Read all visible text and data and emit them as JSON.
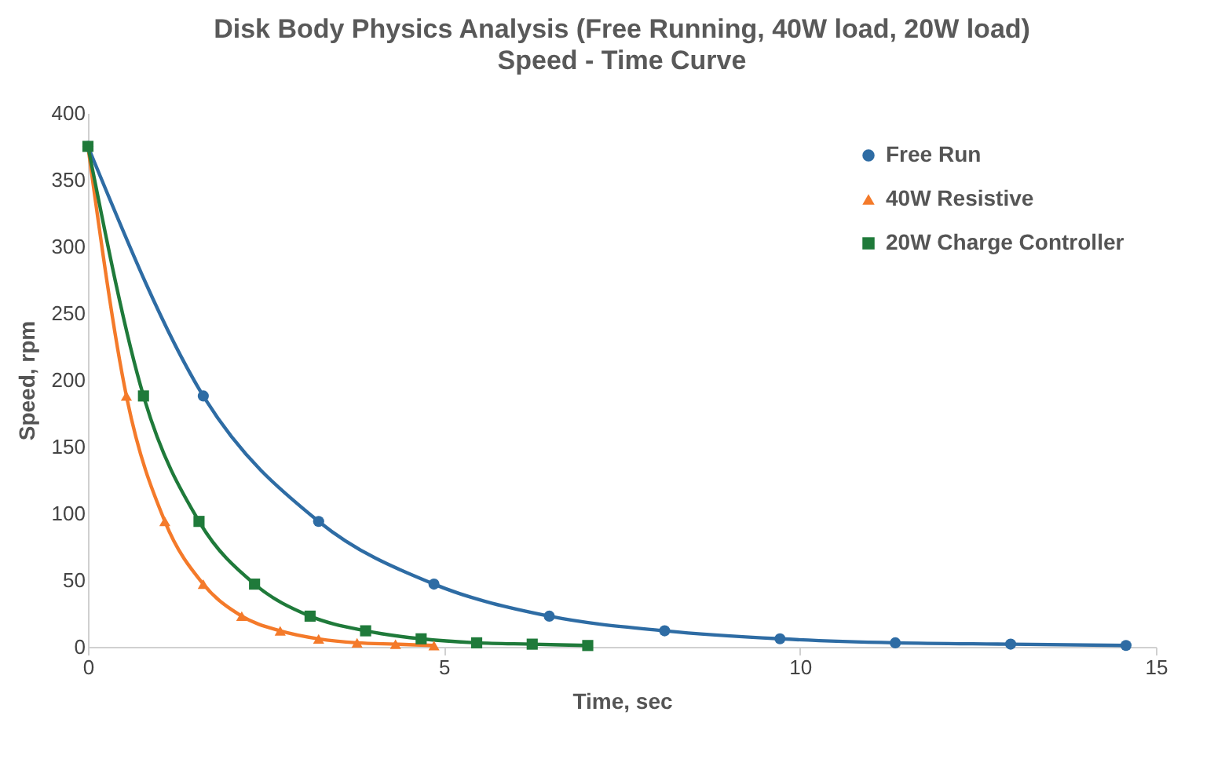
{
  "chart_data": {
    "type": "line",
    "title": "Disk Body Physics Analysis (Free Running, 40W load, 20W load)",
    "subtitle": "Speed - Time Curve",
    "xlabel": "Time, sec",
    "ylabel": "Speed, rpm",
    "xlim": [
      0,
      15
    ],
    "xticks": [
      0,
      5,
      10,
      15
    ],
    "ylim": [
      0,
      400
    ],
    "yticks": [
      0,
      50,
      100,
      150,
      200,
      250,
      300,
      350,
      400
    ],
    "grid": false,
    "legend": "top right",
    "series": [
      {
        "name": "Free Run",
        "color": "#2e6ca4",
        "marker": "circle",
        "x": [
          0,
          1.62,
          3.24,
          4.86,
          6.48,
          8.1,
          9.72,
          11.34,
          12.96,
          14.58
        ],
        "values": [
          375,
          188,
          94,
          47,
          23,
          12,
          6,
          3,
          2,
          1
        ]
      },
      {
        "name": "40W Resistive",
        "color": "#f47a2a",
        "marker": "triangle",
        "x": [
          0,
          0.54,
          1.08,
          1.62,
          2.16,
          2.7,
          3.24,
          3.78,
          4.32,
          4.86
        ],
        "values": [
          375,
          188,
          94,
          47,
          23,
          12,
          6,
          3,
          2,
          1
        ]
      },
      {
        "name": "20W Charge Controller",
        "color": "#1f7a3a",
        "marker": "square",
        "x": [
          0,
          0.78,
          1.56,
          2.34,
          3.12,
          3.9,
          4.68,
          5.46,
          6.24,
          7.02
        ],
        "values": [
          375,
          188,
          94,
          47,
          23,
          12,
          6,
          3,
          2,
          1
        ]
      }
    ]
  }
}
